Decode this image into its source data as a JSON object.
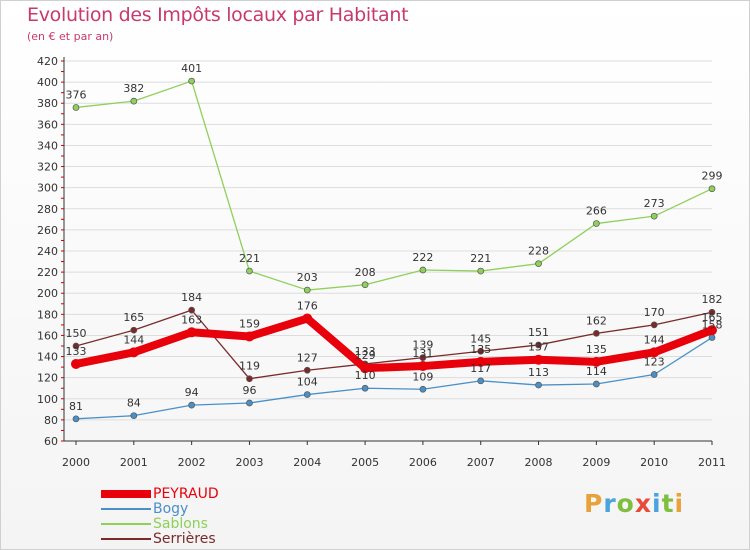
{
  "title": "Evolution des Impôts locaux par Habitant",
  "subtitle": "(en € et par an)",
  "logo": {
    "text": "Proxiti",
    "colors": [
      "#e8a23a",
      "#4aa3df",
      "#7fbf3f",
      "#e84b3a",
      "#4aa3df",
      "#7fbf3f",
      "#e8a23a"
    ]
  },
  "chart_data": {
    "type": "line",
    "title": "Evolution des Impôts locaux par Habitant",
    "subtitle": "(en € et par an)",
    "xlabel": "",
    "ylabel": "",
    "x": [
      "2000",
      "2001",
      "2002",
      "2003",
      "2004",
      "2005",
      "2006",
      "2007",
      "2008",
      "2009",
      "2010",
      "2011"
    ],
    "ylim": [
      60,
      420
    ],
    "yticks": [
      60,
      80,
      100,
      120,
      140,
      160,
      180,
      200,
      220,
      240,
      260,
      280,
      300,
      320,
      340,
      360,
      380,
      400,
      420
    ],
    "grid": "horizontal",
    "legend": "bottom-left",
    "series": [
      {
        "name": "PEYRAUD",
        "color": "#e8000b",
        "values": [
          133,
          144,
          163,
          159,
          176,
          129,
          131,
          135,
          137,
          135,
          144,
          165
        ],
        "labels": [
          "133",
          "144",
          "163",
          "159",
          "176",
          "129",
          "131",
          "135",
          "137",
          "135",
          "144",
          "165"
        ]
      },
      {
        "name": "Bogy",
        "color": "#4a90c8",
        "values": [
          81,
          84,
          94,
          96,
          104,
          110,
          109,
          117,
          113,
          114,
          123,
          158
        ],
        "labels": [
          "81",
          "84",
          "94",
          "96",
          "104",
          "110",
          "109",
          "117",
          "113",
          "114",
          "123",
          "158"
        ]
      },
      {
        "name": "Sablons",
        "color": "#8ed05a",
        "values": [
          376,
          382,
          401,
          221,
          203,
          208,
          222,
          221,
          228,
          266,
          273,
          299
        ],
        "labels": [
          "376",
          "382",
          "401",
          "221",
          "203",
          "208",
          "222",
          "221",
          "228",
          "266",
          "273",
          "299"
        ]
      },
      {
        "name": "Serrières",
        "color": "#7a2a2a",
        "values": [
          150,
          165,
          184,
          119,
          127,
          133,
          139,
          145,
          151,
          162,
          170,
          182
        ],
        "labels": [
          "150",
          "165",
          "184",
          "119",
          "127",
          "133",
          "139",
          "145",
          "151",
          "162",
          "170",
          "182"
        ]
      }
    ]
  }
}
